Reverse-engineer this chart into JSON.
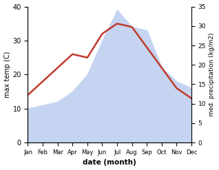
{
  "months": [
    "Jan",
    "Feb",
    "Mar",
    "Apr",
    "May",
    "Jun",
    "Jul",
    "Aug",
    "Sep",
    "Oct",
    "Nov",
    "Dec"
  ],
  "temperature": [
    14,
    18,
    22,
    26,
    25,
    32,
    35,
    34,
    28,
    22,
    16,
    13
  ],
  "precipitation": [
    10,
    11,
    12,
    15,
    20,
    30,
    39,
    34,
    33,
    22,
    18,
    16
  ],
  "temp_color": "#c0392b",
  "precip_fill_color": "#c5d4f0",
  "left_ylim": [
    0,
    40
  ],
  "right_ylim": [
    0,
    35
  ],
  "left_yticks": [
    0,
    10,
    20,
    30,
    40
  ],
  "right_yticks": [
    0,
    5,
    10,
    15,
    20,
    25,
    30,
    35
  ],
  "xlabel": "date (month)",
  "ylabel_left": "max temp (C)",
  "ylabel_right": "med. precipitation (kg/m2)",
  "temp_linewidth": 1.8
}
